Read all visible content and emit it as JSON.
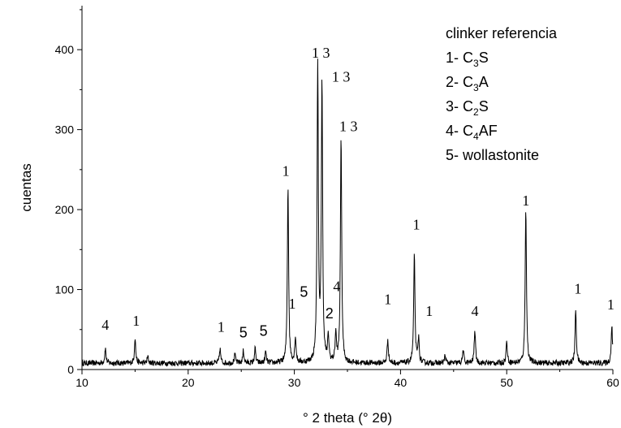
{
  "chart_data": {
    "type": "line",
    "title": "",
    "xlabel": "° 2 theta (° 2θ)",
    "ylabel": "cuentas",
    "xlim": [
      10,
      60
    ],
    "ylim": [
      0,
      455
    ],
    "x_ticks": [
      10,
      20,
      30,
      40,
      50,
      60
    ],
    "y_ticks": [
      0,
      100,
      200,
      300,
      400
    ],
    "grid": false,
    "legend_position": "top-right",
    "series": [
      {
        "baseline": 8,
        "noise": 3.5,
        "peaks": [
          {
            "x": 12.2,
            "y": 27
          },
          {
            "x": 15.0,
            "y": 40
          },
          {
            "x": 16.2,
            "y": 16
          },
          {
            "x": 23.0,
            "y": 26
          },
          {
            "x": 24.4,
            "y": 19
          },
          {
            "x": 25.2,
            "y": 24
          },
          {
            "x": 26.3,
            "y": 26
          },
          {
            "x": 27.3,
            "y": 22
          },
          {
            "x": 29.4,
            "y": 230
          },
          {
            "x": 30.1,
            "y": 40
          },
          {
            "x": 32.2,
            "y": 380
          },
          {
            "x": 32.6,
            "y": 357
          },
          {
            "x": 33.2,
            "y": 40
          },
          {
            "x": 33.9,
            "y": 45
          },
          {
            "x": 34.4,
            "y": 292
          },
          {
            "x": 38.8,
            "y": 38
          },
          {
            "x": 41.3,
            "y": 143
          },
          {
            "x": 41.7,
            "y": 38
          },
          {
            "x": 44.2,
            "y": 18
          },
          {
            "x": 45.9,
            "y": 24
          },
          {
            "x": 47.0,
            "y": 50
          },
          {
            "x": 50.0,
            "y": 35
          },
          {
            "x": 51.8,
            "y": 203
          },
          {
            "x": 56.5,
            "y": 75
          },
          {
            "x": 59.9,
            "y": 55
          }
        ]
      }
    ],
    "peak_labels": [
      {
        "text": "4",
        "x": 12.2,
        "y": 50,
        "font": "serif"
      },
      {
        "text": "1",
        "x": 15.1,
        "y": 55,
        "font": "serif"
      },
      {
        "text": "1",
        "x": 23.1,
        "y": 47,
        "font": "serif"
      },
      {
        "text": "5",
        "x": 25.2,
        "y": 40,
        "font": "sans"
      },
      {
        "text": "5",
        "x": 27.1,
        "y": 42,
        "font": "sans"
      },
      {
        "text": "1",
        "x": 29.2,
        "y": 242,
        "font": "serif"
      },
      {
        "text": "1",
        "x": 29.8,
        "y": 76,
        "font": "serif"
      },
      {
        "text": "5",
        "x": 30.9,
        "y": 91,
        "font": "sans"
      },
      {
        "text": "1 3",
        "x": 32.5,
        "y": 390,
        "font": "serif"
      },
      {
        "text": "1 3",
        "x": 34.4,
        "y": 360,
        "font": "serif"
      },
      {
        "text": "1 3",
        "x": 35.1,
        "y": 298,
        "font": "serif"
      },
      {
        "text": "2",
        "x": 33.3,
        "y": 64,
        "font": "sans"
      },
      {
        "text": "4",
        "x": 34.0,
        "y": 98,
        "font": "serif"
      },
      {
        "text": "1",
        "x": 38.8,
        "y": 82,
        "font": "serif"
      },
      {
        "text": "1",
        "x": 41.5,
        "y": 175,
        "font": "serif"
      },
      {
        "text": "1",
        "x": 42.7,
        "y": 67,
        "font": "serif"
      },
      {
        "text": "4",
        "x": 47.0,
        "y": 67,
        "font": "serif"
      },
      {
        "text": "1",
        "x": 51.8,
        "y": 205,
        "font": "serif"
      },
      {
        "text": "1",
        "x": 56.7,
        "y": 95,
        "font": "serif"
      },
      {
        "text": "1",
        "x": 59.8,
        "y": 75,
        "font": "serif"
      }
    ],
    "legend": {
      "title": "clinker referencia",
      "items": [
        {
          "prefix": "1- C",
          "sub": "3",
          "suffix": "S"
        },
        {
          "prefix": "2- C",
          "sub": "3",
          "suffix": "A"
        },
        {
          "prefix": "3- C",
          "sub": "2",
          "suffix": "S"
        },
        {
          "prefix": "4- C",
          "sub": "4",
          "suffix": "AF"
        },
        {
          "prefix": "5- wollastonite",
          "sub": "",
          "suffix": ""
        }
      ]
    },
    "colors": {
      "line": "#000000",
      "axis": "#000000"
    }
  }
}
